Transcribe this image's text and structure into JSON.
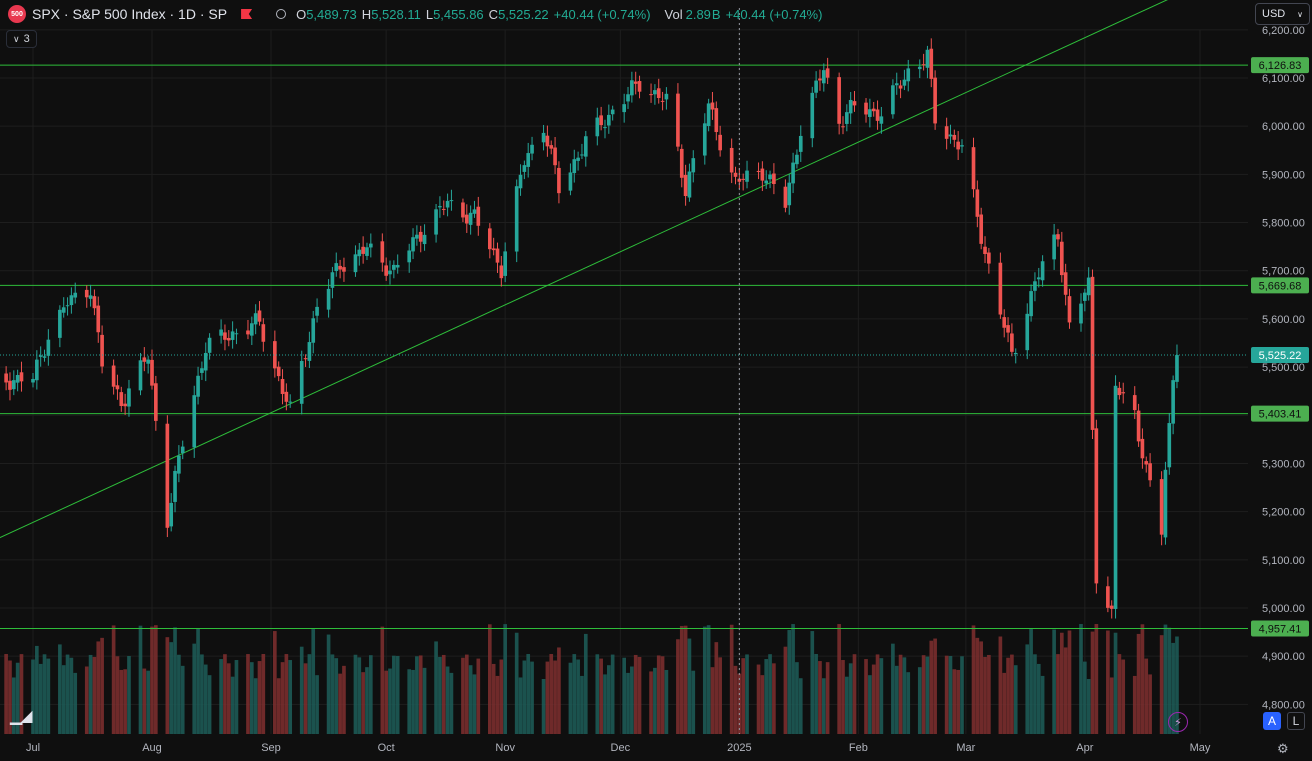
{
  "header": {
    "badge": "500",
    "title": "SPX · S&P 500 Index · 1D · SP",
    "ohlc": [
      {
        "k": "O",
        "v": "5,489.73"
      },
      {
        "k": "H",
        "v": "5,528.11"
      },
      {
        "k": "L",
        "v": "5,455.86"
      },
      {
        "k": "C",
        "v": "5,525.22"
      }
    ],
    "change": "+40.44 (+0.74%)",
    "vol_label": "Vol",
    "vol_value": "2.89",
    "vol_unit": "B",
    "vol_change": "+40.44 (+0.74%)"
  },
  "collapse_count": "3",
  "currency": "USD",
  "buttons": {
    "auto": "A",
    "log": "L"
  },
  "colors": {
    "up": "#26a69a",
    "down": "#ef5350",
    "line": "#2ebd3a",
    "bg": "#0f0f0f"
  },
  "chart_data": {
    "type": "candlestick",
    "y_ticks": [
      4800,
      4900,
      5000,
      5100,
      5200,
      5300,
      5400,
      5500,
      5600,
      5700,
      5800,
      5900,
      6000,
      6100,
      6200
    ],
    "ylim": [
      4780,
      6220
    ],
    "x_labels": [
      {
        "label": "Jul",
        "date": "2024-07-01"
      },
      {
        "label": "Aug",
        "date": "2024-08-01"
      },
      {
        "label": "Sep",
        "date": "2024-09-01"
      },
      {
        "label": "Oct",
        "date": "2024-10-01"
      },
      {
        "label": "Nov",
        "date": "2024-11-01"
      },
      {
        "label": "Dec",
        "date": "2024-12-01"
      },
      {
        "label": "2025",
        "date": "2025-01-01"
      },
      {
        "label": "Feb",
        "date": "2025-02-01"
      },
      {
        "label": "Mar",
        "date": "2025-03-01"
      },
      {
        "label": "Apr",
        "date": "2025-04-01"
      },
      {
        "label": "May",
        "date": "2025-05-01"
      }
    ],
    "horizontal_lines": [
      {
        "value": 6126.83,
        "label": "6,126.83"
      },
      {
        "value": 5669.68,
        "label": "5,669.68"
      },
      {
        "value": 5403.41,
        "label": "5,403.41"
      },
      {
        "value": 4957.41,
        "label": "4,957.41"
      }
    ],
    "trendline": [
      {
        "date": "2024-06-18",
        "value": 5130
      },
      {
        "date": "2025-04-30",
        "value": 6290
      }
    ],
    "last_price": {
      "value": 5525.22,
      "label": "5,525.22"
    },
    "crosshair_date": "2025-01-01",
    "closes": [
      {
        "date": "2024-06-20",
        "close": 5473
      },
      {
        "date": "2024-07-01",
        "close": 5475
      },
      {
        "date": "2024-07-05",
        "close": 5567
      },
      {
        "date": "2024-07-10",
        "close": 5633
      },
      {
        "date": "2024-07-16",
        "close": 5667
      },
      {
        "date": "2024-07-19",
        "close": 5505
      },
      {
        "date": "2024-07-24",
        "close": 5427
      },
      {
        "date": "2024-07-31",
        "close": 5522
      },
      {
        "date": "2024-08-05",
        "close": 5186
      },
      {
        "date": "2024-08-09",
        "close": 5344
      },
      {
        "date": "2024-08-15",
        "close": 5543
      },
      {
        "date": "2024-08-22",
        "close": 5570
      },
      {
        "date": "2024-08-29",
        "close": 5592
      },
      {
        "date": "2024-09-06",
        "close": 5408
      },
      {
        "date": "2024-09-13",
        "close": 5626
      },
      {
        "date": "2024-09-19",
        "close": 5713
      },
      {
        "date": "2024-09-26",
        "close": 5745
      },
      {
        "date": "2024-10-03",
        "close": 5699
      },
      {
        "date": "2024-10-10",
        "close": 5780
      },
      {
        "date": "2024-10-17",
        "close": 5841
      },
      {
        "date": "2024-10-24",
        "close": 5809
      },
      {
        "date": "2024-10-31",
        "close": 5705
      },
      {
        "date": "2024-11-06",
        "close": 5929
      },
      {
        "date": "2024-11-11",
        "close": 6001
      },
      {
        "date": "2024-11-15",
        "close": 5870
      },
      {
        "date": "2024-11-22",
        "close": 5969
      },
      {
        "date": "2024-11-29",
        "close": 6032
      },
      {
        "date": "2024-12-06",
        "close": 6090
      },
      {
        "date": "2024-12-13",
        "close": 6051
      },
      {
        "date": "2024-12-18",
        "close": 5872
      },
      {
        "date": "2024-12-24",
        "close": 6040
      },
      {
        "date": "2024-12-31",
        "close": 5882
      },
      {
        "date": "2025-01-07",
        "close": 5909
      },
      {
        "date": "2025-01-13",
        "close": 5836
      },
      {
        "date": "2025-01-17",
        "close": 5997
      },
      {
        "date": "2025-01-23",
        "close": 6119
      },
      {
        "date": "2025-01-27",
        "close": 6012
      },
      {
        "date": "2025-01-31",
        "close": 6040
      },
      {
        "date": "2025-02-07",
        "close": 6026
      },
      {
        "date": "2025-02-14",
        "close": 6115
      },
      {
        "date": "2025-02-19",
        "close": 6144
      },
      {
        "date": "2025-02-21",
        "close": 6013
      },
      {
        "date": "2025-02-28",
        "close": 5955
      },
      {
        "date": "2025-03-06",
        "close": 5739
      },
      {
        "date": "2025-03-10",
        "close": 5615
      },
      {
        "date": "2025-03-13",
        "close": 5522
      },
      {
        "date": "2025-03-19",
        "close": 5675
      },
      {
        "date": "2025-03-25",
        "close": 5777
      },
      {
        "date": "2025-03-28",
        "close": 5581
      },
      {
        "date": "2025-04-02",
        "close": 5671
      },
      {
        "date": "2025-04-04",
        "close": 5074
      },
      {
        "date": "2025-04-08",
        "close": 4982
      },
      {
        "date": "2025-04-09",
        "close": 5457
      },
      {
        "date": "2025-04-14",
        "close": 5406
      },
      {
        "date": "2025-04-17",
        "close": 5283
      },
      {
        "date": "2025-04-21",
        "close": 5158
      },
      {
        "date": "2025-04-22",
        "close": 5287
      },
      {
        "date": "2025-04-23",
        "close": 5376
      },
      {
        "date": "2025-04-24",
        "close": 5484
      },
      {
        "date": "2025-04-25",
        "close": 5525
      }
    ]
  }
}
